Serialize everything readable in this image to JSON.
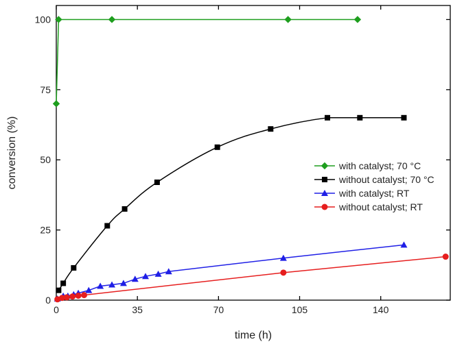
{
  "chart_data": {
    "type": "line",
    "title": "",
    "xlabel": "time (h)",
    "ylabel": "conversion (%)",
    "xlim": [
      0,
      170
    ],
    "ylim": [
      0,
      105
    ],
    "x_ticks": [
      0,
      35,
      70,
      105,
      140
    ],
    "y_ticks": [
      0,
      25,
      50,
      75,
      100
    ],
    "grid": false,
    "legend_position": "center-right",
    "series": [
      {
        "name": "with catalyst; 70 °C",
        "color": "#1e9e1e",
        "marker": "diamond",
        "smooth": false,
        "points": [
          [
            0,
            70
          ],
          [
            1,
            100
          ],
          [
            24,
            100
          ],
          [
            100,
            100
          ],
          [
            130,
            100
          ]
        ]
      },
      {
        "name": "without catalyst; 70 °C",
        "color": "#000000",
        "marker": "square",
        "smooth": true,
        "points": [
          [
            1,
            3.5
          ],
          [
            3,
            6
          ],
          [
            7.5,
            11.5
          ],
          [
            22,
            26.5
          ],
          [
            29.5,
            32.5
          ],
          [
            43.5,
            42
          ],
          [
            69.5,
            54.5
          ],
          [
            92.5,
            61
          ],
          [
            117,
            65
          ],
          [
            131,
            65
          ],
          [
            150,
            65
          ]
        ]
      },
      {
        "name": "with catalyst; RT",
        "color": "#1f1fe6",
        "marker": "triangle",
        "smooth": false,
        "points": [
          [
            0.5,
            0.5
          ],
          [
            3,
            1.5
          ],
          [
            5,
            1.5
          ],
          [
            7.5,
            2
          ],
          [
            9.5,
            2.5
          ],
          [
            14,
            3.5
          ],
          [
            19,
            5
          ],
          [
            24,
            5.5
          ],
          [
            29,
            6
          ],
          [
            34,
            7.5
          ],
          [
            38.5,
            8.5
          ],
          [
            44,
            9.3
          ],
          [
            48.5,
            10.2
          ],
          [
            98,
            15
          ],
          [
            150,
            19.7
          ]
        ]
      },
      {
        "name": "without catalyst; RT",
        "color": "#e61e1e",
        "marker": "circle",
        "smooth": false,
        "points": [
          [
            0.5,
            0.3
          ],
          [
            2.5,
            0.8
          ],
          [
            4.5,
            1
          ],
          [
            7,
            1.3
          ],
          [
            9.5,
            1.6
          ],
          [
            12,
            1.8
          ],
          [
            98,
            9.8
          ],
          [
            168,
            15.5
          ]
        ]
      }
    ]
  }
}
